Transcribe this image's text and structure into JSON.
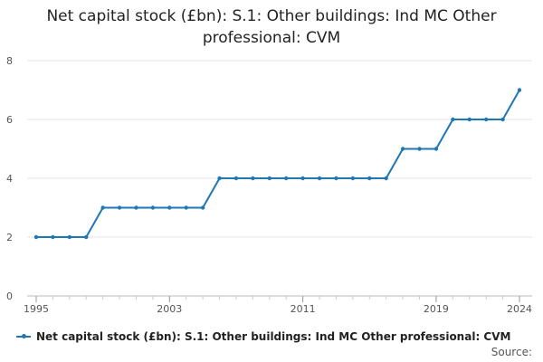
{
  "chart_data": {
    "type": "line",
    "title": "Net capital stock (£bn): S.1: Other buildings: Ind MC Other professional: CVM",
    "xlabel": "",
    "ylabel": "",
    "x": [
      1995,
      1996,
      1997,
      1998,
      1999,
      2000,
      2001,
      2002,
      2003,
      2004,
      2005,
      2006,
      2007,
      2008,
      2009,
      2010,
      2011,
      2012,
      2013,
      2014,
      2015,
      2016,
      2017,
      2018,
      2019,
      2020,
      2021,
      2022,
      2023,
      2024
    ],
    "series": [
      {
        "name": "Net capital stock (£bn): S.1: Other buildings: Ind MC Other professional: CVM",
        "values": [
          2,
          2,
          2,
          2,
          3,
          3,
          3,
          3,
          3,
          3,
          3,
          4,
          4,
          4,
          4,
          4,
          4,
          4,
          4,
          4,
          4,
          4,
          5,
          5,
          5,
          6,
          6,
          6,
          6,
          7
        ]
      }
    ],
    "xticks": [
      1995,
      2003,
      2011,
      2019,
      2024
    ],
    "yticks": [
      0,
      2,
      4,
      6,
      8
    ],
    "xlim": [
      1995,
      2024
    ],
    "ylim": [
      0,
      8
    ],
    "grid": true,
    "legend_position": "bottom",
    "color": "#1f77b4"
  },
  "footer": {
    "source_label": "Source:"
  }
}
